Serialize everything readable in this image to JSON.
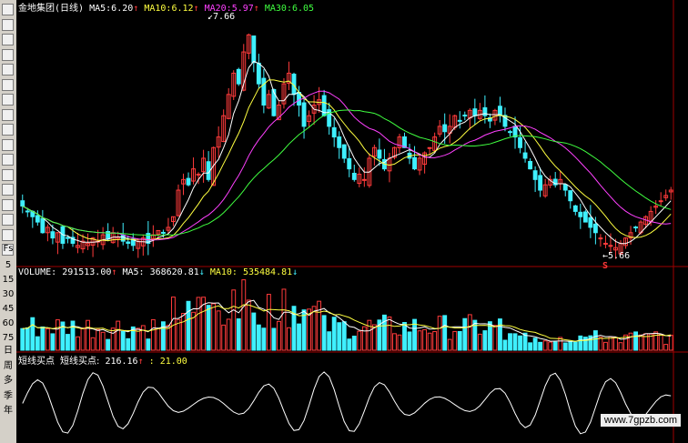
{
  "header": {
    "name": "金地集团",
    "period": "(日线)",
    "ma5_label": "MA5:",
    "ma5_value": "6.20",
    "ma10_label": "MA10:",
    "ma10_value": "6.12",
    "ma20_label": "MA20:",
    "ma20_value": "5.97",
    "ma30_label": "MA30:",
    "ma30_value": "6.05",
    "up_arrow": "↑",
    "down_arrow": "↓"
  },
  "annotations": {
    "high": "7.66",
    "low": "5.66",
    "marker": "S"
  },
  "volume_header": {
    "vol_label": "VOLUME:",
    "vol_value": "291513.00",
    "ma5_label": "MA5:",
    "ma5_value": "368620.81",
    "ma10_label": "MA10:",
    "ma10_value": "535484.81"
  },
  "indicator_header": {
    "name": "短线买点",
    "line_label": "短线买点:",
    "value1": "216.16",
    "sep": ":",
    "value2": "21.00"
  },
  "toolbar_text": [
    "Fs",
    "日",
    "周",
    "多",
    "季",
    "年"
  ],
  "watermark": "www.7gpzb.com",
  "colors": {
    "up": "#ff3b3b",
    "down": "#3ff0ff",
    "ma5": "#ffffff",
    "ma10": "#ffff40",
    "ma20": "#ff40ff",
    "ma30": "#40ff40",
    "grid": "#a00000"
  },
  "chart_data": [
    {
      "type": "candlestick",
      "title": "金地集团 (日线)",
      "price_high": 7.66,
      "price_low": 5.66,
      "series": [
        {
          "name": "MA5",
          "last": 6.2
        },
        {
          "name": "MA10",
          "last": 6.12
        },
        {
          "name": "MA20",
          "last": 5.97
        },
        {
          "name": "MA30",
          "last": 6.05
        }
      ],
      "close": [
        6.05,
        6.0,
        5.95,
        5.9,
        5.8,
        5.85,
        5.75,
        5.8,
        5.7,
        5.75,
        5.7,
        5.68,
        5.72,
        5.7,
        5.75,
        5.72,
        5.78,
        5.74,
        5.8,
        5.76,
        5.72,
        5.7,
        5.68,
        5.72,
        5.75,
        5.7,
        5.78,
        5.82,
        5.8,
        5.85,
        5.95,
        6.2,
        6.3,
        6.25,
        6.4,
        6.35,
        6.5,
        6.3,
        6.6,
        6.7,
        6.9,
        7.1,
        7.3,
        7.2,
        7.5,
        7.66,
        7.4,
        7.2,
        7.0,
        7.1,
        6.9,
        7.0,
        7.2,
        7.3,
        7.1,
        7.0,
        6.8,
        6.9,
        7.0,
        7.05,
        6.9,
        6.8,
        6.7,
        6.6,
        6.5,
        6.4,
        6.3,
        6.35,
        6.3,
        6.5,
        6.6,
        6.5,
        6.4,
        6.5,
        6.6,
        6.7,
        6.6,
        6.5,
        6.4,
        6.5,
        6.55,
        6.6,
        6.7,
        6.8,
        6.75,
        6.8,
        6.9,
        6.85,
        6.9,
        6.95,
        6.9,
        6.95,
        6.9,
        6.85,
        6.95,
        6.9,
        6.8,
        6.75,
        6.7,
        6.6,
        6.5,
        6.4,
        6.3,
        6.2,
        6.25,
        6.3,
        6.25,
        6.3,
        6.2,
        6.1,
        6.0,
        5.95,
        5.9,
        5.85,
        5.8,
        5.75,
        5.7,
        5.68,
        5.66,
        5.7,
        5.75,
        5.8,
        5.85,
        5.9,
        5.95,
        6.0,
        6.05,
        6.1,
        6.15,
        6.2
      ],
      "volume_ma5": 368620.81,
      "volume_ma10": 535484.81,
      "volume_last": 291513.0,
      "volume_ticks": [
        5,
        15,
        30,
        45,
        60,
        75
      ]
    }
  ]
}
